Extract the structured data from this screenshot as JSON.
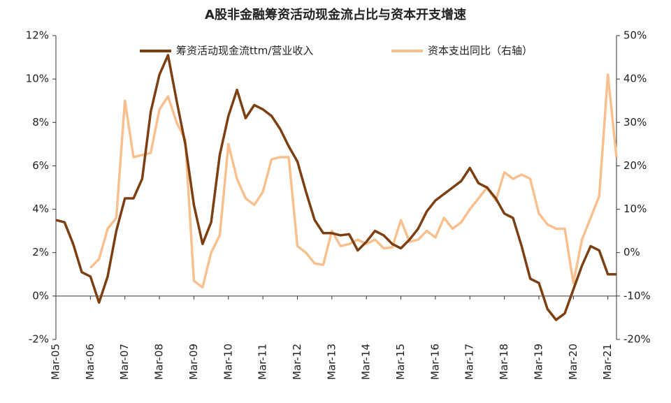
{
  "chart_data": {
    "type": "line",
    "title": "A股非金融筹资活动现金流占比与资本开支增速",
    "categories": [
      "Mar-05",
      null,
      null,
      null,
      "Mar-06",
      null,
      null,
      null,
      "Mar-07",
      null,
      null,
      null,
      "Mar-08",
      null,
      null,
      null,
      "Mar-09",
      null,
      null,
      null,
      "Mar-10",
      null,
      null,
      null,
      "Mar-11",
      null,
      null,
      null,
      "Mar-12",
      null,
      null,
      null,
      "Mar-13",
      null,
      null,
      null,
      "Mar-14",
      null,
      null,
      null,
      "Mar-15",
      null,
      null,
      null,
      "Mar-16",
      null,
      null,
      null,
      "Mar-17",
      null,
      null,
      null,
      "Mar-18",
      null,
      null,
      null,
      "Mar-19",
      null,
      null,
      null,
      "Mar-20",
      null,
      null,
      null,
      "Mar-21",
      null
    ],
    "series": [
      {
        "name": "筹资活动现金流ttm/营业收入",
        "color": "#7b3f12",
        "axis": "y",
        "values": [
          3.5,
          3.4,
          2.4,
          1.1,
          0.9,
          -0.3,
          0.9,
          3.0,
          4.5,
          4.5,
          5.4,
          8.5,
          10.2,
          11.1,
          9.0,
          7.0,
          4.2,
          2.4,
          3.4,
          6.5,
          8.3,
          9.5,
          8.2,
          8.8,
          8.6,
          8.3,
          7.7,
          6.9,
          6.2,
          4.8,
          3.5,
          2.9,
          2.9,
          2.8,
          2.85,
          2.1,
          2.5,
          3.0,
          2.8,
          2.4,
          2.2,
          2.6,
          3.1,
          3.9,
          4.4,
          4.7,
          5.0,
          5.3,
          5.9,
          5.2,
          5.0,
          4.5,
          3.8,
          3.6,
          2.3,
          0.8,
          0.6,
          -0.6,
          -1.1,
          -0.8,
          0.3,
          1.4,
          2.3,
          2.1,
          1.0,
          1.0
        ]
      },
      {
        "name": "资本支出同比（右轴）",
        "color": "#f7c08e",
        "axis": "y2",
        "values": [
          null,
          null,
          null,
          null,
          -3.5,
          -1.5,
          5.5,
          8,
          35,
          22,
          22.5,
          23,
          33,
          36,
          30,
          26,
          -6.5,
          -8,
          0,
          4,
          25,
          17,
          12.5,
          11,
          14,
          21.5,
          22,
          22,
          1.5,
          0,
          -2.5,
          -2.8,
          5,
          1.5,
          2,
          3,
          2,
          3,
          1,
          1.2,
          7.5,
          2.5,
          3,
          5,
          3.5,
          8,
          5.5,
          7,
          10,
          12.5,
          15,
          12,
          18.5,
          17,
          18,
          17,
          9,
          6.5,
          5.5,
          5.5,
          -7,
          3,
          8,
          13,
          41,
          22
        ]
      }
    ],
    "ylim": [
      -2,
      12
    ],
    "yticks": [
      {
        "value": -2,
        "label": "-2%"
      },
      {
        "value": 0,
        "label": "0%"
      },
      {
        "value": 2,
        "label": "2%"
      },
      {
        "value": 4,
        "label": "4%"
      },
      {
        "value": 6,
        "label": "6%"
      },
      {
        "value": 8,
        "label": "8%"
      },
      {
        "value": 10,
        "label": "10%"
      },
      {
        "value": 12,
        "label": "12%"
      }
    ],
    "y2lim": [
      -20,
      50
    ],
    "y2ticks": [
      {
        "value": -20,
        "label": "-20%"
      },
      {
        "value": -10,
        "label": "-10%"
      },
      {
        "value": 0,
        "label": "0%"
      },
      {
        "value": 10,
        "label": "10%"
      },
      {
        "value": 20,
        "label": "20%"
      },
      {
        "value": 30,
        "label": "30%"
      },
      {
        "value": 40,
        "label": "40%"
      },
      {
        "value": 50,
        "label": "50%"
      }
    ],
    "grid": false,
    "legend": "top"
  }
}
